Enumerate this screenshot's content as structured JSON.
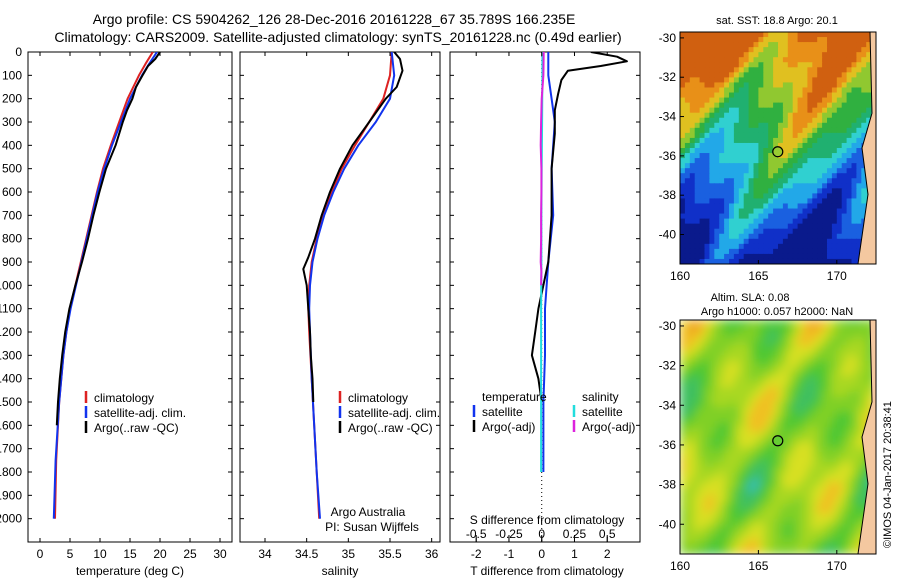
{
  "title": {
    "line1": "Argo profile: CS 5904262_126 28-Dec-2016 20161228_67 35.789S 166.235E",
    "line2": "Climatology: CARS2009. Satellite-adjusted climatology: synTS_20161228.nc (0.49d earlier)"
  },
  "colors": {
    "climatology": "#dd2222",
    "satellite": "#1133ee",
    "argo": "#000000",
    "salinity_sat": "#22dddd",
    "salinity_argo": "#dd22dd"
  },
  "legend_profiles": {
    "climatology": "climatology",
    "satellite": "satellite-adj. clim.",
    "argo": "Argo(..raw -QC)"
  },
  "legend_diff": {
    "temperature_head": "temperature",
    "salinity_head": "salinity",
    "satellite": "satellite",
    "argo": "Argo(-adj)"
  },
  "credit": {
    "line1": "Argo Australia",
    "line2": "PI: Susan Wijffels"
  },
  "chart_data": [
    {
      "type": "line",
      "panel": "temperature",
      "xlabel": "temperature (deg C)",
      "ylabel": "",
      "xlim": [
        -2,
        32
      ],
      "ylim": [
        2100,
        0
      ],
      "xticks": [
        0,
        5,
        10,
        15,
        20,
        25,
        30
      ],
      "yticks": [
        0,
        100,
        200,
        300,
        400,
        500,
        600,
        700,
        800,
        900,
        1000,
        1100,
        1200,
        1300,
        1400,
        1500,
        1600,
        1700,
        1800,
        1900,
        2000
      ],
      "series": [
        {
          "name": "climatology",
          "y": [
            0,
            50,
            100,
            200,
            300,
            400,
            500,
            600,
            700,
            800,
            900,
            1000,
            1100,
            1200,
            1300,
            1500,
            1750,
            2000
          ],
          "x": [
            18.8,
            17.6,
            16.5,
            14.6,
            13.2,
            11.8,
            10.5,
            9.5,
            8.6,
            7.7,
            6.8,
            5.9,
            5.0,
            4.4,
            3.9,
            3.2,
            2.7,
            2.5
          ]
        },
        {
          "name": "satellite-adj. clim.",
          "y": [
            0,
            50,
            100,
            200,
            300,
            400,
            500,
            600,
            700,
            800,
            900,
            1000,
            1100,
            1200,
            1300,
            1500,
            1750,
            2000
          ],
          "x": [
            19.5,
            18.2,
            17.0,
            15.0,
            13.5,
            12.0,
            10.7,
            9.6,
            8.7,
            7.8,
            6.9,
            6.0,
            5.1,
            4.4,
            3.9,
            3.2,
            2.6,
            2.3
          ]
        },
        {
          "name": "Argo(..raw -QC)",
          "y": [
            0,
            30,
            60,
            100,
            150,
            200,
            250,
            300,
            400,
            500,
            600,
            700,
            800,
            900,
            1000,
            1100,
            1200,
            1300,
            1400,
            1500,
            1600
          ],
          "x": [
            20.0,
            19.2,
            18.0,
            17.1,
            16.0,
            15.4,
            14.5,
            13.8,
            12.6,
            11.0,
            9.9,
            8.9,
            8.0,
            7.0,
            5.9,
            4.9,
            4.2,
            3.7,
            3.3,
            3.0,
            2.8
          ]
        }
      ]
    },
    {
      "type": "line",
      "panel": "salinity",
      "xlabel": "salinity",
      "ylabel": "",
      "xlim": [
        33.7,
        36.1
      ],
      "ylim": [
        2100,
        0
      ],
      "xticks": [
        34,
        34.5,
        35,
        35.5,
        36
      ],
      "series": [
        {
          "name": "climatology",
          "y": [
            0,
            100,
            200,
            300,
            400,
            500,
            600,
            700,
            800,
            900,
            1000,
            1100,
            1200,
            1400,
            1600,
            1800,
            2000
          ],
          "x": [
            35.52,
            35.5,
            35.42,
            35.25,
            35.08,
            34.92,
            34.8,
            34.7,
            34.62,
            34.56,
            34.53,
            34.52,
            34.53,
            34.56,
            34.59,
            34.62,
            34.65
          ]
        },
        {
          "name": "satellite-adj. clim.",
          "y": [
            0,
            100,
            200,
            300,
            400,
            500,
            600,
            700,
            800,
            900,
            1000,
            1100,
            1200,
            1400,
            1600,
            1800,
            2000
          ],
          "x": [
            35.52,
            35.55,
            35.5,
            35.33,
            35.12,
            34.95,
            34.82,
            34.71,
            34.63,
            34.57,
            34.54,
            34.53,
            34.54,
            34.56,
            34.59,
            34.62,
            34.66
          ]
        },
        {
          "name": "Argo(..raw -QC)",
          "y": [
            0,
            30,
            80,
            150,
            200,
            300,
            400,
            500,
            600,
            700,
            800,
            880,
            930,
            1000,
            1100,
            1200,
            1300,
            1400,
            1500
          ],
          "x": [
            35.55,
            35.62,
            35.65,
            35.58,
            35.45,
            35.25,
            35.05,
            34.9,
            34.78,
            34.68,
            34.6,
            34.52,
            34.46,
            34.5,
            34.52,
            34.54,
            34.55,
            34.57,
            34.58
          ]
        }
      ]
    },
    {
      "type": "line",
      "panel": "difference",
      "xlabel": "T difference from climatology",
      "x2label": "S difference from climatology",
      "xlim": [
        -2.8,
        3.0
      ],
      "ylim": [
        2100,
        0
      ],
      "xticks": [
        -2,
        -1,
        0,
        1,
        2
      ],
      "xtick_labels": [
        "-2",
        "-1",
        "0",
        "1",
        "2"
      ],
      "x2ticks": [
        -0.5,
        -0.25,
        0,
        0.25,
        0.5
      ],
      "x2tick_labels": [
        "-0.5",
        "-0.25",
        "0",
        "0.25",
        "0.5"
      ],
      "x2_scale": 4,
      "series": [
        {
          "name": "temperature satellite",
          "y": [
            0,
            100,
            200,
            300,
            500,
            700,
            900,
            1100,
            1300,
            1500,
            1800
          ],
          "x": [
            0.2,
            0.2,
            0.3,
            0.4,
            0.3,
            0.35,
            0.2,
            0.1,
            0.1,
            0.05,
            0.05
          ]
        },
        {
          "name": "temperature Argo(-adj)",
          "y": [
            0,
            20,
            40,
            60,
            80,
            120,
            180,
            250,
            350,
            500,
            700,
            900,
            1100,
            1200,
            1300,
            1400,
            1500
          ],
          "x": [
            1.5,
            2.3,
            2.6,
            1.8,
            0.8,
            0.6,
            0.5,
            0.4,
            0.4,
            0.3,
            0.3,
            0.2,
            -0.1,
            -0.2,
            -0.3,
            -0.1,
            0.0
          ]
        },
        {
          "name": "salinity satellite",
          "y": [
            0,
            100,
            300,
            500,
            700,
            900,
            1100,
            1300,
            1500,
            1800
          ],
          "x": [
            0.02,
            0.02,
            0.01,
            0.0,
            -0.01,
            -0.01,
            -0.02,
            -0.02,
            -0.02,
            -0.02
          ]
        },
        {
          "name": "salinity Argo(-adj)",
          "y": [
            0,
            100,
            200,
            300,
            400,
            500,
            600,
            700,
            800,
            900,
            940,
            1000
          ],
          "x": [
            0.06,
            0.05,
            0.0,
            -0.02,
            -0.03,
            -0.01,
            -0.01,
            -0.02,
            -0.02,
            -0.03,
            -0.01,
            -0.02
          ]
        }
      ]
    },
    {
      "type": "heatmap",
      "panel": "sst_map",
      "title": "sat. SST: 18.8 Argo: 20.1",
      "xticks": [
        160,
        165,
        170
      ],
      "yticks": [
        -30,
        -32,
        -34,
        -36,
        -38,
        -40
      ],
      "xlim": [
        160,
        172.5
      ],
      "ylim": [
        -41.5,
        -29.7
      ],
      "marker": {
        "lon": 166.235,
        "lat": -35.789
      }
    },
    {
      "type": "heatmap",
      "panel": "sla_map",
      "title": "Altim. SLA: 0.08",
      "subtitle": "Argo h1000: 0.057 h2000: NaN",
      "xticks": [
        160,
        165,
        170
      ],
      "yticks": [
        -30,
        -32,
        -34,
        -36,
        -38,
        -40
      ],
      "xlim": [
        160,
        172.5
      ],
      "ylim": [
        -41.5,
        -29.7
      ],
      "marker": {
        "lon": 166.235,
        "lat": -35.789
      }
    }
  ],
  "side_stamp": "©IMOS 04-Jan-2017 20:38:41"
}
